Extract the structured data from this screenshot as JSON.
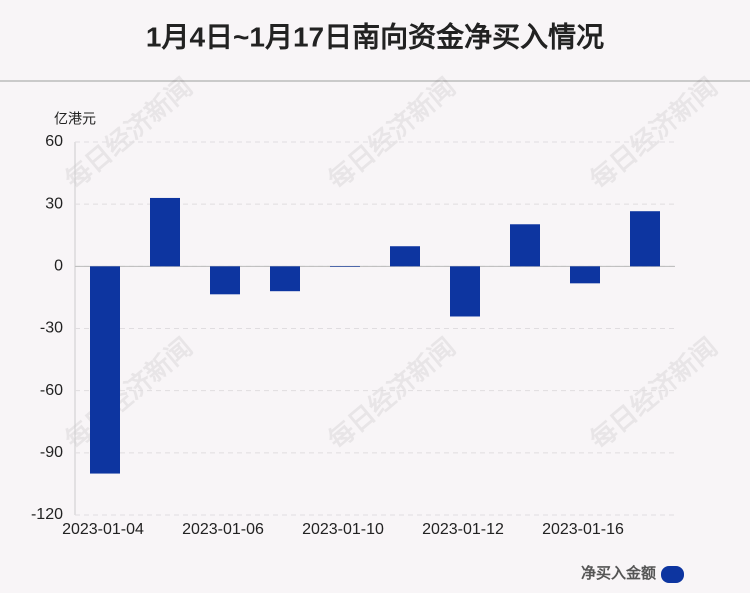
{
  "chart_data": {
    "type": "bar",
    "title": "1月4日~1月17日南向资金净买入情况",
    "y_label": "亿港元",
    "watermark": "每日经济新闻",
    "categories": [
      "2023-01-04",
      null,
      "2023-01-06",
      null,
      "2023-01-10",
      null,
      "2023-01-12",
      null,
      "2023-01-16",
      null
    ],
    "series": [
      {
        "name": "净买入金额",
        "color": "#0d35a0",
        "values": [
          -100,
          33,
          -13.5,
          -12,
          -0.3,
          9.7,
          -24.2,
          20.3,
          -8.2,
          26.6
        ]
      }
    ],
    "ylim": [
      -120,
      60
    ],
    "yticks": [
      -120,
      -90,
      -60,
      -30,
      0,
      30,
      60
    ],
    "grid": true,
    "legend": "bottom-right"
  }
}
